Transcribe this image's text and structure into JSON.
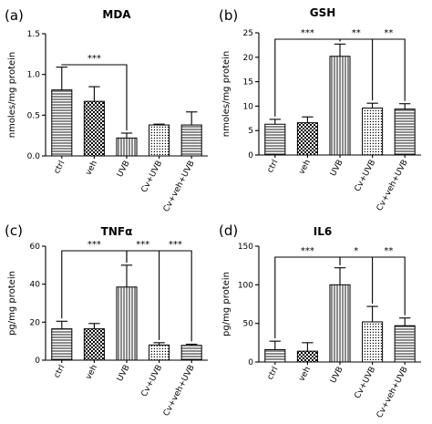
{
  "chart_data": [
    {
      "type": "bar",
      "panel": "(a)",
      "title": "MDA",
      "ylabel": "nmoles/mg protein",
      "ylim": [
        0,
        1.5
      ],
      "yticks": [
        "0.0",
        "0.5",
        "1.0",
        "1.5"
      ],
      "ytick_values": [
        0,
        0.5,
        1.0,
        1.5
      ],
      "categories": [
        "ctrl",
        "veh",
        "UVB",
        "Cv+UVB",
        "Cv+veh+UVB"
      ],
      "values": [
        0.81,
        0.67,
        0.22,
        0.38,
        0.38
      ],
      "errors": [
        0.28,
        0.18,
        0.06,
        0.01,
        0.16
      ],
      "significance": [
        {
          "from": 0,
          "to": [
            2
          ],
          "label": "***"
        }
      ]
    },
    {
      "type": "bar",
      "panel": "(b)",
      "title": "GSH",
      "ylabel": "nmoles/mg protein",
      "ylim": [
        0,
        25
      ],
      "yticks": [
        "0",
        "5",
        "10",
        "15",
        "20",
        "25"
      ],
      "ytick_values": [
        0,
        5,
        10,
        15,
        20,
        25
      ],
      "categories": [
        "ctrl",
        "veh",
        "UVB",
        "Cv+UVB",
        "Cv+veh+UVB"
      ],
      "values": [
        6.3,
        6.6,
        20.2,
        9.6,
        9.4
      ],
      "errors": [
        1.0,
        1.2,
        2.5,
        1.0,
        1.1
      ],
      "significance": [
        {
          "from": 0,
          "to": [
            2
          ],
          "label": "***"
        },
        {
          "from": 2,
          "to": [
            3,
            4
          ],
          "label": "**",
          "label2": "**"
        }
      ]
    },
    {
      "type": "bar",
      "panel": "(c)",
      "title": "TNFα",
      "ylabel": "pg/mg protein",
      "ylim": [
        0,
        60
      ],
      "yticks": [
        "0",
        "20",
        "40",
        "60"
      ],
      "ytick_values": [
        0,
        20,
        40,
        60
      ],
      "categories": [
        "ctrl",
        "veh",
        "UVB",
        "Cv+UVB",
        "Cv+veh+UVB"
      ],
      "values": [
        16.5,
        16.5,
        38.5,
        8.0,
        7.8
      ],
      "errors": [
        4.0,
        2.8,
        11.5,
        1.2,
        0.6
      ],
      "significance": [
        {
          "from": 0,
          "to": [
            2
          ],
          "label": "***"
        },
        {
          "from": 2,
          "to": [
            3,
            4
          ],
          "label": "***",
          "label2": "***"
        }
      ]
    },
    {
      "type": "bar",
      "panel": "(d)",
      "title": "IL6",
      "ylabel": "pg/mg protein",
      "ylim": [
        0,
        150
      ],
      "yticks": [
        "0",
        "50",
        "100",
        "150"
      ],
      "ytick_values": [
        0,
        50,
        100,
        150
      ],
      "categories": [
        "ctrl",
        "veh",
        "UVB",
        "Cv+UVB",
        "Cv+veh+UVB"
      ],
      "values": [
        16,
        14,
        100,
        52,
        47
      ],
      "errors": [
        11,
        11,
        22,
        20,
        10
      ],
      "significance": [
        {
          "from": 0,
          "to": [
            2
          ],
          "label": "***"
        },
        {
          "from": 2,
          "to": [
            3,
            4
          ],
          "label": "*",
          "label2": "**"
        }
      ]
    }
  ]
}
